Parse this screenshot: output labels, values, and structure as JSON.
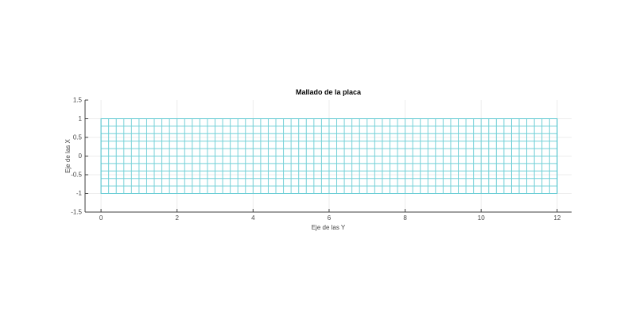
{
  "chart_data": {
    "type": "heatmap",
    "subtype": "mesh-grid",
    "title": "Mallado de la placa",
    "xlabel": "Eje de las Y",
    "ylabel": "Eje de las X",
    "x_ticks": [
      0,
      2,
      4,
      6,
      8,
      10,
      12
    ],
    "x_tick_labels": [
      "0",
      "2",
      "4",
      "6",
      "8",
      "10",
      "12"
    ],
    "y_ticks": [
      1.5,
      1,
      0.5,
      0,
      -0.5,
      -1,
      -1.5
    ],
    "y_tick_labels": [
      "1.5",
      "1",
      "0.5",
      "0",
      "-0.5",
      "-1",
      "-1.5"
    ],
    "xlim": [
      -0.42,
      12.38
    ],
    "ylim": [
      -1.5,
      1.5
    ],
    "grid": true,
    "legend": null,
    "mesh": {
      "x_start": 0,
      "x_end": 12,
      "y_start": -1,
      "y_end": 1,
      "dx": 0.2,
      "dy": 0.2,
      "columns": 60,
      "rows": 10
    },
    "colors": {
      "background": "#ffffff",
      "mesh_line": "#74d1d8",
      "mesh_edge": "#5ac7d0",
      "major_grid": "#ececec",
      "axis_line": "#3f3f3f",
      "tick_label": "#444444",
      "title": "#000000"
    }
  }
}
